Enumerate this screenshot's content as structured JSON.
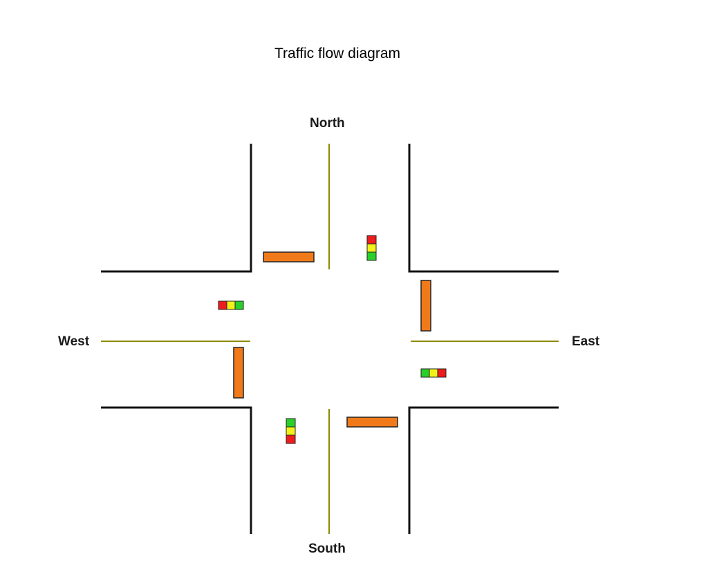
{
  "title": "Traffic flow diagram",
  "directions": {
    "north": "North",
    "south": "South",
    "west": "West",
    "east": "East"
  },
  "colors": {
    "curb": "#111111",
    "center_line": "#8f8a00",
    "vehicle": "#f07a1a",
    "vehicle_outline": "#222222",
    "light_red": "#ee1c1c",
    "light_yellow": "#f2f21a",
    "light_green": "#2ad02a"
  },
  "vehicles": [
    {
      "id": "vehicle-north-bound-approach",
      "orientation": "horizontal"
    },
    {
      "id": "vehicle-east-approach",
      "orientation": "vertical"
    },
    {
      "id": "vehicle-west-approach",
      "orientation": "vertical"
    },
    {
      "id": "vehicle-south-approach",
      "orientation": "horizontal"
    }
  ],
  "traffic_lights": [
    {
      "id": "north",
      "orientation": "vertical",
      "order": [
        "red",
        "yellow",
        "green"
      ]
    },
    {
      "id": "west",
      "orientation": "horizontal",
      "order": [
        "red",
        "yellow",
        "green"
      ]
    },
    {
      "id": "east",
      "orientation": "horizontal",
      "order": [
        "green",
        "yellow",
        "red"
      ]
    },
    {
      "id": "south",
      "orientation": "vertical",
      "order": [
        "green",
        "yellow",
        "red"
      ]
    }
  ]
}
